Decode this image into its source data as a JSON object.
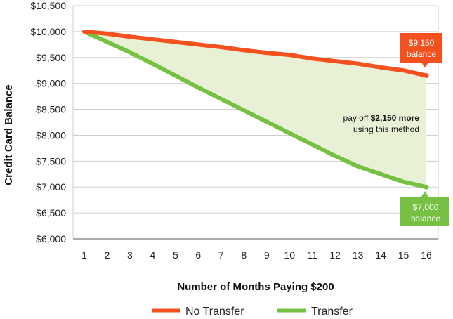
{
  "chart_data": {
    "type": "line",
    "xlabel": "Number of Months Paying $200",
    "ylabel": "Credit Card Balance",
    "x": [
      1,
      2,
      3,
      4,
      5,
      6,
      7,
      8,
      9,
      10,
      11,
      12,
      13,
      14,
      15,
      16
    ],
    "ylim": [
      6000,
      10500
    ],
    "yticks": [
      "$6,000",
      "$6,500",
      "$7,000",
      "$7,500",
      "$8,000",
      "$8,500",
      "$9,000",
      "$9,500",
      "$10,000",
      "$10,500"
    ],
    "ytick_values": [
      6000,
      6500,
      7000,
      7500,
      8000,
      8500,
      9000,
      9500,
      10000,
      10500
    ],
    "grid": true,
    "legend_position": "bottom",
    "series": [
      {
        "name": "No Transfer",
        "color": "#f4511e",
        "values": [
          10000,
          9960,
          9900,
          9850,
          9800,
          9750,
          9700,
          9640,
          9590,
          9550,
          9480,
          9430,
          9380,
          9310,
          9250,
          9150
        ]
      },
      {
        "name": "Transfer",
        "color": "#76c043",
        "values": [
          10000,
          9800,
          9600,
          9380,
          9150,
          8920,
          8700,
          8480,
          8260,
          8040,
          7820,
          7600,
          7400,
          7250,
          7100,
          7000
        ]
      }
    ],
    "fill_between_color": "#e8f1d6",
    "annotations": {
      "difference_prefix": "pay off ",
      "difference_amount": "$2,150 more",
      "difference_line2": "using this method",
      "no_transfer_value": "$9,150",
      "no_transfer_word": "balance",
      "transfer_value": "$7,000",
      "transfer_word": "balance"
    }
  }
}
